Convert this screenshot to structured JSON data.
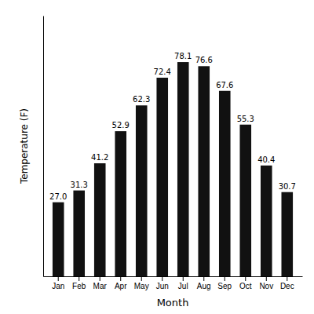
{
  "chart_data": {
    "type": "bar",
    "categories": [
      "Jan",
      "Feb",
      "Mar",
      "Apr",
      "May",
      "Jun",
      "Jul",
      "Aug",
      "Sep",
      "Oct",
      "Nov",
      "Dec"
    ],
    "values": [
      27.0,
      31.3,
      41.2,
      52.9,
      62.3,
      72.4,
      78.1,
      76.6,
      67.6,
      55.3,
      40.4,
      30.7
    ],
    "value_labels": [
      "27.0",
      "31.3",
      "41.2",
      "52.9",
      "62.3",
      "72.4",
      "78.1",
      "76.6",
      "67.6",
      "55.3",
      "40.4",
      "30.7"
    ],
    "color": "#111111",
    "xlabel": "Month",
    "ylabel": "Temperature (F)",
    "ylim": [
      0,
      95
    ],
    "data_labels": true,
    "tick_labels": "x",
    "grid": false
  }
}
